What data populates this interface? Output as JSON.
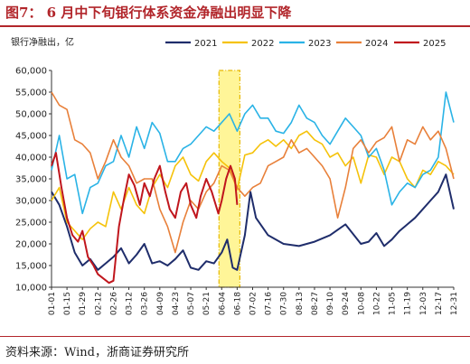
{
  "figure": {
    "title": "图7：  6 月中下旬银行体系资金净融出明显下降",
    "source": "资料来源：Wind，浙商证券研究所"
  },
  "chart_data": {
    "type": "line",
    "ylabel": "银行净融出，亿",
    "ylim": [
      10000,
      60000
    ],
    "yticks": [
      10000,
      15000,
      20000,
      25000,
      30000,
      35000,
      40000,
      45000,
      50000,
      55000,
      60000
    ],
    "ytick_labels": [
      "10,000",
      "15,000",
      "20,000",
      "25,000",
      "30,000",
      "35,000",
      "40,000",
      "45,000",
      "50,000",
      "55,000",
      "60,000"
    ],
    "x_range": [
      "01-01",
      "12-31"
    ],
    "xticks": [
      "01-01",
      "01-15",
      "01-29",
      "02-12",
      "02-26",
      "03-12",
      "03-26",
      "04-09",
      "04-23",
      "05-07",
      "05-21",
      "06-04",
      "06-18",
      "07-02",
      "07-16",
      "07-30",
      "08-13",
      "08-27",
      "09-10",
      "09-24",
      "10-08",
      "10-22",
      "11-05",
      "11-19",
      "12-03",
      "12-17",
      "12-31"
    ],
    "legend_position": "top",
    "highlight": {
      "label_from": "06-04",
      "label_to": "06-18",
      "color": "#fff176",
      "border": "#e6b800"
    },
    "series": [
      {
        "name": "2021",
        "color": "#1f2d6b",
        "points": [
          [
            "01-01",
            32000
          ],
          [
            "01-08",
            29000
          ],
          [
            "01-15",
            24000
          ],
          [
            "01-22",
            18000
          ],
          [
            "01-29",
            15000
          ],
          [
            "02-05",
            16500
          ],
          [
            "02-12",
            14000
          ],
          [
            "02-19",
            15500
          ],
          [
            "02-26",
            17000
          ],
          [
            "03-05",
            19000
          ],
          [
            "03-12",
            15500
          ],
          [
            "03-19",
            17500
          ],
          [
            "03-26",
            20000
          ],
          [
            "04-02",
            15500
          ],
          [
            "04-09",
            16000
          ],
          [
            "04-16",
            15000
          ],
          [
            "04-23",
            16500
          ],
          [
            "04-30",
            18500
          ],
          [
            "05-07",
            14500
          ],
          [
            "05-14",
            14000
          ],
          [
            "05-21",
            16000
          ],
          [
            "05-28",
            15500
          ],
          [
            "06-04",
            18000
          ],
          [
            "06-09",
            21000
          ],
          [
            "06-14",
            14500
          ],
          [
            "06-18",
            14000
          ],
          [
            "06-25",
            22000
          ],
          [
            "06-30",
            32000
          ],
          [
            "07-05",
            26000
          ],
          [
            "07-16",
            22000
          ],
          [
            "07-30",
            20000
          ],
          [
            "08-13",
            19500
          ],
          [
            "08-27",
            20500
          ],
          [
            "09-10",
            22000
          ],
          [
            "09-24",
            24500
          ],
          [
            "10-08",
            20000
          ],
          [
            "10-15",
            20500
          ],
          [
            "10-22",
            22500
          ],
          [
            "10-29",
            19500
          ],
          [
            "11-05",
            21000
          ],
          [
            "11-12",
            23000
          ],
          [
            "11-19",
            24500
          ],
          [
            "11-26",
            26000
          ],
          [
            "12-03",
            28000
          ],
          [
            "12-10",
            30000
          ],
          [
            "12-17",
            32000
          ],
          [
            "12-24",
            36000
          ],
          [
            "12-31",
            28000
          ]
        ]
      },
      {
        "name": "2022",
        "color": "#f5c20a",
        "points": [
          [
            "01-01",
            30000
          ],
          [
            "01-08",
            33000
          ],
          [
            "01-15",
            25000
          ],
          [
            "01-22",
            23000
          ],
          [
            "01-29",
            21000
          ],
          [
            "02-05",
            23500
          ],
          [
            "02-12",
            25000
          ],
          [
            "02-19",
            24000
          ],
          [
            "02-26",
            32000
          ],
          [
            "03-05",
            28000
          ],
          [
            "03-12",
            33000
          ],
          [
            "03-19",
            29000
          ],
          [
            "03-26",
            27000
          ],
          [
            "04-02",
            33000
          ],
          [
            "04-09",
            36000
          ],
          [
            "04-16",
            33000
          ],
          [
            "04-23",
            38000
          ],
          [
            "04-30",
            40000
          ],
          [
            "05-07",
            36000
          ],
          [
            "05-14",
            34500
          ],
          [
            "05-21",
            39000
          ],
          [
            "05-28",
            41000
          ],
          [
            "06-04",
            39000
          ],
          [
            "06-11",
            37500
          ],
          [
            "06-18",
            32500
          ],
          [
            "06-25",
            40500
          ],
          [
            "07-02",
            41000
          ],
          [
            "07-09",
            43000
          ],
          [
            "07-16",
            44000
          ],
          [
            "07-23",
            42500
          ],
          [
            "07-30",
            44000
          ],
          [
            "08-06",
            42000
          ],
          [
            "08-13",
            45000
          ],
          [
            "08-20",
            46000
          ],
          [
            "08-27",
            44000
          ],
          [
            "09-03",
            43000
          ],
          [
            "09-10",
            40000
          ],
          [
            "09-17",
            41000
          ],
          [
            "09-24",
            38000
          ],
          [
            "10-01",
            40000
          ],
          [
            "10-08",
            34000
          ],
          [
            "10-15",
            40500
          ],
          [
            "10-22",
            40000
          ],
          [
            "10-29",
            36000
          ],
          [
            "11-05",
            40000
          ],
          [
            "11-12",
            39000
          ],
          [
            "11-19",
            35000
          ],
          [
            "11-26",
            33000
          ],
          [
            "12-03",
            37000
          ],
          [
            "12-10",
            36000
          ],
          [
            "12-17",
            39000
          ],
          [
            "12-24",
            38000
          ],
          [
            "12-31",
            36000
          ]
        ]
      },
      {
        "name": "2023",
        "color": "#2ab3e6",
        "points": [
          [
            "01-01",
            37000
          ],
          [
            "01-08",
            45000
          ],
          [
            "01-15",
            35000
          ],
          [
            "01-22",
            36000
          ],
          [
            "01-29",
            27000
          ],
          [
            "02-05",
            33000
          ],
          [
            "02-12",
            34000
          ],
          [
            "02-19",
            38000
          ],
          [
            "02-26",
            39000
          ],
          [
            "03-05",
            45000
          ],
          [
            "03-12",
            40000
          ],
          [
            "03-19",
            47000
          ],
          [
            "03-26",
            42000
          ],
          [
            "04-02",
            48000
          ],
          [
            "04-09",
            45500
          ],
          [
            "04-16",
            39000
          ],
          [
            "04-23",
            39000
          ],
          [
            "04-30",
            42000
          ],
          [
            "05-07",
            43000
          ],
          [
            "05-14",
            45000
          ],
          [
            "05-21",
            47000
          ],
          [
            "05-28",
            46000
          ],
          [
            "06-04",
            48000
          ],
          [
            "06-11",
            50000
          ],
          [
            "06-18",
            46000
          ],
          [
            "06-25",
            50000
          ],
          [
            "07-02",
            52000
          ],
          [
            "07-09",
            49000
          ],
          [
            "07-16",
            49000
          ],
          [
            "07-23",
            46000
          ],
          [
            "07-30",
            45500
          ],
          [
            "08-06",
            48000
          ],
          [
            "08-13",
            52000
          ],
          [
            "08-20",
            49000
          ],
          [
            "08-27",
            48000
          ],
          [
            "09-03",
            45000
          ],
          [
            "09-10",
            43000
          ],
          [
            "09-17",
            46000
          ],
          [
            "09-24",
            49000
          ],
          [
            "10-01",
            47000
          ],
          [
            "10-08",
            45000
          ],
          [
            "10-15",
            40000
          ],
          [
            "10-22",
            42000
          ],
          [
            "10-29",
            37000
          ],
          [
            "11-05",
            29000
          ],
          [
            "11-12",
            32000
          ],
          [
            "11-19",
            34000
          ],
          [
            "11-26",
            33000
          ],
          [
            "12-03",
            36000
          ],
          [
            "12-10",
            37000
          ],
          [
            "12-17",
            40000
          ],
          [
            "12-24",
            55000
          ],
          [
            "12-31",
            48000
          ]
        ]
      },
      {
        "name": "2024",
        "color": "#e8803a",
        "points": [
          [
            "01-01",
            55000
          ],
          [
            "01-08",
            52000
          ],
          [
            "01-15",
            51000
          ],
          [
            "01-22",
            44000
          ],
          [
            "01-29",
            43000
          ],
          [
            "02-05",
            41000
          ],
          [
            "02-12",
            35000
          ],
          [
            "02-19",
            39000
          ],
          [
            "02-26",
            44000
          ],
          [
            "03-05",
            40000
          ],
          [
            "03-12",
            38000
          ],
          [
            "03-19",
            34000
          ],
          [
            "03-26",
            35000
          ],
          [
            "04-02",
            35000
          ],
          [
            "04-09",
            28000
          ],
          [
            "04-16",
            24000
          ],
          [
            "04-23",
            18000
          ],
          [
            "04-30",
            25000
          ],
          [
            "05-07",
            30000
          ],
          [
            "05-14",
            28000
          ],
          [
            "05-21",
            32000
          ],
          [
            "05-28",
            34000
          ],
          [
            "06-04",
            38000
          ],
          [
            "06-11",
            37000
          ],
          [
            "06-18",
            33000
          ],
          [
            "06-25",
            31000
          ],
          [
            "07-02",
            33000
          ],
          [
            "07-09",
            34000
          ],
          [
            "07-16",
            38000
          ],
          [
            "07-23",
            39000
          ],
          [
            "07-30",
            40000
          ],
          [
            "08-06",
            44000
          ],
          [
            "08-13",
            41000
          ],
          [
            "08-20",
            42000
          ],
          [
            "08-27",
            40000
          ],
          [
            "09-03",
            38000
          ],
          [
            "09-10",
            35000
          ],
          [
            "09-17",
            26000
          ],
          [
            "09-24",
            33000
          ],
          [
            "10-01",
            42000
          ],
          [
            "10-08",
            44000
          ],
          [
            "10-15",
            41000
          ],
          [
            "10-22",
            43500
          ],
          [
            "10-29",
            44500
          ],
          [
            "11-05",
            47000
          ],
          [
            "11-12",
            39000
          ],
          [
            "11-19",
            44000
          ],
          [
            "11-26",
            43000
          ],
          [
            "12-03",
            47000
          ],
          [
            "12-10",
            44000
          ],
          [
            "12-17",
            46000
          ],
          [
            "12-24",
            42000
          ],
          [
            "12-31",
            35000
          ]
        ]
      },
      {
        "name": "2025",
        "color": "#c0161d",
        "points": [
          [
            "01-01",
            38000
          ],
          [
            "01-05",
            41000
          ],
          [
            "01-10",
            33000
          ],
          [
            "01-15",
            26000
          ],
          [
            "01-20",
            22000
          ],
          [
            "01-25",
            20500
          ],
          [
            "01-29",
            23000
          ],
          [
            "02-03",
            17000
          ],
          [
            "02-08",
            15000
          ],
          [
            "02-12",
            13000
          ],
          [
            "02-17",
            12000
          ],
          [
            "02-22",
            11000
          ],
          [
            "02-26",
            11500
          ],
          [
            "03-03",
            24000
          ],
          [
            "03-08",
            31000
          ],
          [
            "03-12",
            36000
          ],
          [
            "03-17",
            33500
          ],
          [
            "03-22",
            29000
          ],
          [
            "03-26",
            34000
          ],
          [
            "03-31",
            31000
          ],
          [
            "04-04",
            35000
          ],
          [
            "04-09",
            38000
          ],
          [
            "04-14",
            32000
          ],
          [
            "04-18",
            28000
          ],
          [
            "04-23",
            26000
          ],
          [
            "04-28",
            32000
          ],
          [
            "05-03",
            34000
          ],
          [
            "05-07",
            29000
          ],
          [
            "05-12",
            26000
          ],
          [
            "05-16",
            31000
          ],
          [
            "05-21",
            35000
          ],
          [
            "05-26",
            32000
          ],
          [
            "06-01",
            27000
          ],
          [
            "06-04",
            30000
          ],
          [
            "06-08",
            35000
          ],
          [
            "06-12",
            38000
          ],
          [
            "06-16",
            35000
          ],
          [
            "06-18",
            29000
          ]
        ]
      }
    ]
  }
}
